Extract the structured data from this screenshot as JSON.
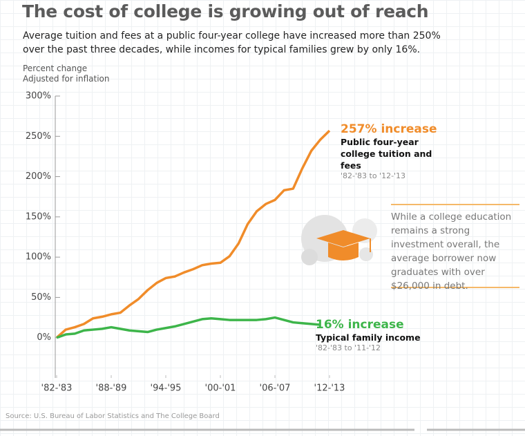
{
  "chart_data": {
    "type": "line",
    "title": "The cost of college is growing out of reach",
    "subtitle": "Average tuition and fees at a public four-year college have increased more than 250% over the past three decades, while incomes for typical families grew by only 16%.",
    "y_label": [
      "Percent change",
      "Adjusted for inflation"
    ],
    "x": [
      1982,
      1983,
      1984,
      1985,
      1986,
      1987,
      1988,
      1989,
      1990,
      1991,
      1992,
      1993,
      1994,
      1995,
      1996,
      1997,
      1998,
      1999,
      2000,
      2001,
      2002,
      2003,
      2004,
      2005,
      2006,
      2007,
      2008,
      2009,
      2010,
      2011,
      2012
    ],
    "series": [
      {
        "name": "Public four-year college tuition and fees",
        "color": "#f08c2a",
        "label": "257% increase",
        "period": "'82-'83 to '12-'13",
        "values": [
          0,
          10,
          13,
          17,
          24,
          26,
          29,
          31,
          40,
          48,
          59,
          68,
          74,
          76,
          81,
          85,
          90,
          92,
          93,
          101,
          117,
          141,
          157,
          166,
          171,
          183,
          185,
          210,
          232,
          246,
          257
        ]
      },
      {
        "name": "Typical family income",
        "color": "#3db54a",
        "label": "16% increase",
        "period": "'82-'83 to '11-'12",
        "values": [
          0,
          4,
          5,
          9,
          10,
          11,
          13,
          11,
          9,
          8,
          7,
          10,
          12,
          14,
          17,
          20,
          23,
          24,
          23,
          22,
          22,
          22,
          22,
          23,
          25,
          22,
          19,
          18,
          17,
          16,
          null
        ]
      }
    ],
    "xlim": [
      1982,
      2012
    ],
    "xticks": [
      {
        "value": 1982,
        "label": "'82-'83"
      },
      {
        "value": 1988,
        "label": "'88-'89"
      },
      {
        "value": 1994,
        "label": "'94-'95"
      },
      {
        "value": 2000,
        "label": "'00-'01"
      },
      {
        "value": 2006,
        "label": "'06-'07"
      },
      {
        "value": 2012,
        "label": "'12-'13"
      }
    ],
    "ylim": [
      -50,
      300
    ],
    "yticks": [
      {
        "value": 0,
        "label": "0%"
      },
      {
        "value": 50,
        "label": "50%"
      },
      {
        "value": 100,
        "label": "100%"
      },
      {
        "value": 150,
        "label": "150%"
      },
      {
        "value": 200,
        "label": "200%"
      },
      {
        "value": 250,
        "label": "250%"
      },
      {
        "value": 300,
        "label": "300%"
      }
    ],
    "note": "While a college education remains a strong investment overall, the average borrower now graduates with over $26,000 in debt.",
    "source": "Source: U.S. Bureau of Labor Statistics and The College Board"
  }
}
